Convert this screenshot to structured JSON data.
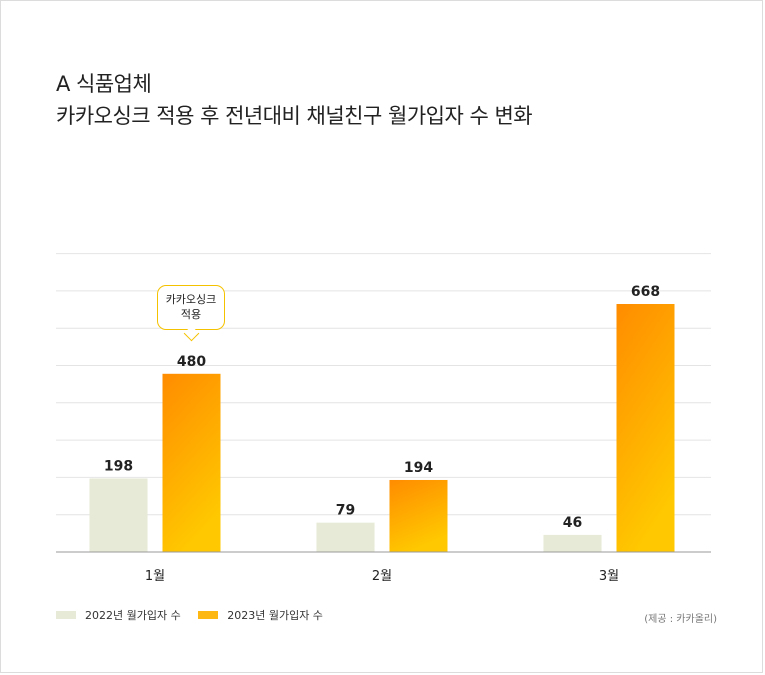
{
  "header": {
    "title_line1": "A 식품업체",
    "title_line2": "카카오싱크 적용 후 전년대비 채널친구 월가입자 수 변화"
  },
  "callout": {
    "line1": "카카오싱크",
    "line2": "적용"
  },
  "legend": {
    "items": [
      {
        "label": "2022년 월가입자 수",
        "color": "#e6ead6"
      },
      {
        "label": "2023년 월가입자 수",
        "color": "#fdb813"
      }
    ]
  },
  "source": "(제공 : 카카올리)",
  "colors": {
    "bar_2022": "#e6ead6",
    "bar_2023_top": "#ff8c00",
    "bar_2023_bottom": "#ffc800",
    "grid": "#e4e4e4",
    "axis": "#999999"
  },
  "chart_data": {
    "type": "bar",
    "title": "카카오싱크 적용 후 전년대비 채널친구 월가입자 수 변화",
    "categories": [
      "1월",
      "2월",
      "3월"
    ],
    "series": [
      {
        "name": "2022년 월가입자 수",
        "values": [
          198,
          79,
          46
        ]
      },
      {
        "name": "2023년 월가입자 수",
        "values": [
          480,
          194,
          668
        ]
      }
    ],
    "ylim": [
      0,
      800
    ],
    "grid": true,
    "legend_position": "bottom-left"
  }
}
